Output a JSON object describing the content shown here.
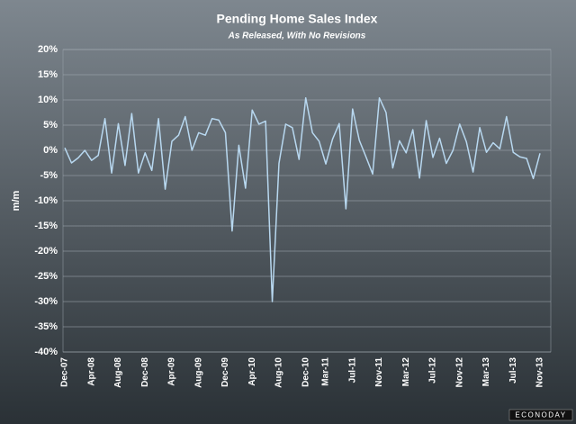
{
  "chart_data": {
    "type": "line",
    "title": "Pending Home Sales Index",
    "subtitle": "As Released, With No Revisions",
    "y_label": "m/m",
    "logo": "ECONODAY",
    "categories": [
      "Dec-07",
      null,
      null,
      null,
      "Apr-08",
      null,
      null,
      null,
      "Aug-08",
      null,
      null,
      null,
      "Dec-08",
      null,
      null,
      null,
      "Apr-09",
      null,
      null,
      null,
      "Aug-09",
      null,
      null,
      null,
      "Dec-09",
      null,
      null,
      null,
      "Apr-10",
      null,
      null,
      null,
      "Aug-10",
      null,
      null,
      null,
      "Dec-10",
      null,
      null,
      "Mar-11",
      null,
      null,
      null,
      "Jul-11",
      null,
      null,
      null,
      "Nov-11",
      null,
      null,
      null,
      "Mar-12",
      null,
      null,
      null,
      "Jul-12",
      null,
      null,
      null,
      "Nov-12",
      null,
      null,
      null,
      "Mar-13",
      null,
      null,
      null,
      "Jul-13",
      null,
      null,
      null,
      "Nov-13"
    ],
    "series": [
      {
        "name": "m/m",
        "color": "#b8d8f0",
        "values": [
          0.5,
          -2.5,
          -1.5,
          0,
          -2,
          -1,
          6.3,
          -4.5,
          5.3,
          -3,
          7.3,
          -4.5,
          -0.5,
          -4,
          6.3,
          -7.7,
          1.8,
          3,
          6.7,
          0,
          3.5,
          3,
          6.3,
          6,
          3.5,
          -16,
          1,
          -7.5,
          8,
          5.2,
          5.8,
          -30,
          -2.6,
          5.2,
          4.5,
          -1.8,
          10.4,
          3.5,
          1.8,
          -2.7,
          2.2,
          5.3,
          -11.6,
          8.2,
          2,
          -1.3,
          -4.7,
          10.4,
          7.5,
          -3.5,
          1.9,
          -0.5,
          4.1,
          -5.5,
          5.9,
          -1.4,
          2.4,
          -2.6,
          0,
          5.2,
          1.7,
          -4.3,
          4.5,
          -0.4,
          1.5,
          0.3,
          6.7,
          -0.4,
          -1.3,
          -1.6,
          -5.6,
          -0.6
        ]
      }
    ],
    "ylim": [
      -40,
      20
    ],
    "yticks": [
      {
        "value": -40,
        "label": "-40%"
      },
      {
        "value": -35,
        "label": "-35%"
      },
      {
        "value": -30,
        "label": "-30%"
      },
      {
        "value": -25,
        "label": "-25%"
      },
      {
        "value": -20,
        "label": "-20%"
      },
      {
        "value": -15,
        "label": "-15%"
      },
      {
        "value": -10,
        "label": "-10%"
      },
      {
        "value": -5,
        "label": "-5%"
      },
      {
        "value": 0,
        "label": "0%"
      },
      {
        "value": 5,
        "label": "5%"
      },
      {
        "value": 10,
        "label": "10%"
      },
      {
        "value": 15,
        "label": "15%"
      },
      {
        "value": 20,
        "label": "20%"
      }
    ],
    "grid": true
  }
}
